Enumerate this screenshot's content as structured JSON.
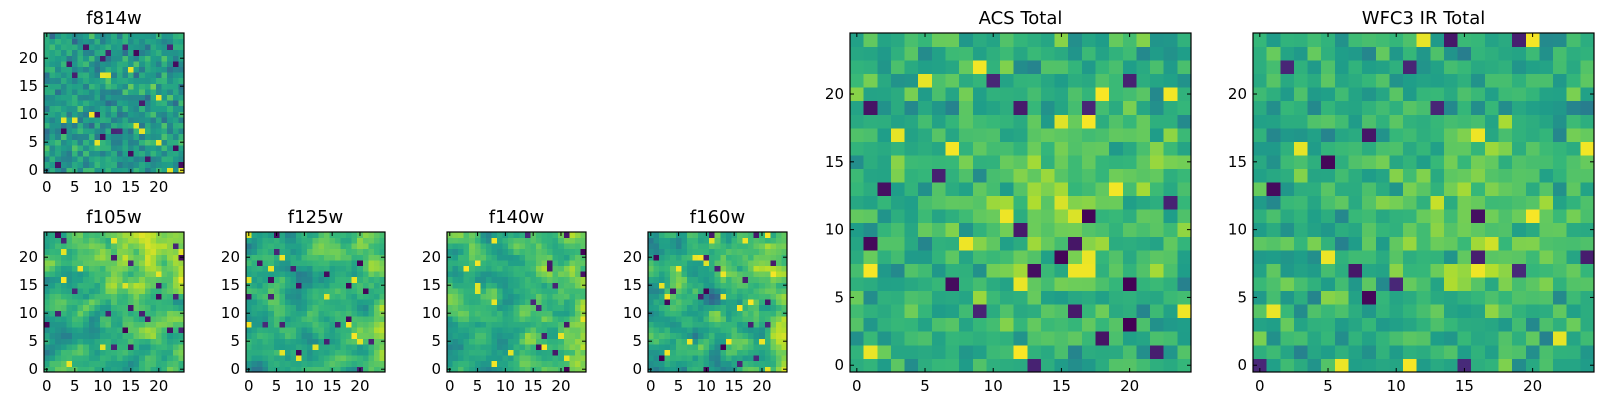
{
  "chart_data": [
    {
      "type": "heatmap",
      "title": "f814w",
      "rows": 25,
      "cols": 25,
      "xticks": [
        "0",
        "5",
        "10",
        "15",
        "20"
      ],
      "yticks": [
        "0",
        "5",
        "10",
        "15",
        "20"
      ],
      "xlim": [
        -0.5,
        24.5
      ],
      "ylim": [
        -0.5,
        24.5
      ],
      "seed": 814,
      "mean": 0.55,
      "spread": 0.16,
      "blur": 0,
      "bright_region": null,
      "colormap": "viridis",
      "grid": false
    },
    {
      "type": "heatmap",
      "title": "f105w",
      "rows": 25,
      "cols": 25,
      "xticks": [
        "0",
        "5",
        "10",
        "15",
        "20"
      ],
      "yticks": [
        "0",
        "5",
        "10",
        "15",
        "20"
      ],
      "xlim": [
        -0.5,
        24.5
      ],
      "ylim": [
        -0.5,
        24.5
      ],
      "seed": 105,
      "mean": 0.6,
      "spread": 0.2,
      "blur": 1,
      "bright_region": "upper-right",
      "colormap": "viridis",
      "grid": false
    },
    {
      "type": "heatmap",
      "title": "f125w",
      "rows": 25,
      "cols": 25,
      "xticks": [
        "0",
        "5",
        "10",
        "15",
        "20"
      ],
      "yticks": [
        "0",
        "5",
        "10",
        "15",
        "20"
      ],
      "xlim": [
        -0.5,
        24.5
      ],
      "ylim": [
        -0.5,
        24.5
      ],
      "seed": 125,
      "mean": 0.6,
      "spread": 0.2,
      "blur": 1,
      "bright_region": "right",
      "colormap": "viridis",
      "grid": false
    },
    {
      "type": "heatmap",
      "title": "f140w",
      "rows": 25,
      "cols": 25,
      "xticks": [
        "0",
        "5",
        "10",
        "15",
        "20"
      ],
      "yticks": [
        "0",
        "5",
        "10",
        "15",
        "20"
      ],
      "xlim": [
        -0.5,
        24.5
      ],
      "ylim": [
        -0.5,
        24.5
      ],
      "seed": 140,
      "mean": 0.62,
      "spread": 0.2,
      "blur": 1,
      "bright_region": "right",
      "colormap": "viridis",
      "grid": false
    },
    {
      "type": "heatmap",
      "title": "f160w",
      "rows": 25,
      "cols": 25,
      "xticks": [
        "0",
        "5",
        "10",
        "15",
        "20"
      ],
      "yticks": [
        "0",
        "5",
        "10",
        "15",
        "20"
      ],
      "xlim": [
        -0.5,
        24.5
      ],
      "ylim": [
        -0.5,
        24.5
      ],
      "seed": 160,
      "mean": 0.6,
      "spread": 0.22,
      "blur": 1,
      "bright_region": "right",
      "colormap": "viridis",
      "grid": false
    },
    {
      "type": "heatmap",
      "title": "ACS Total",
      "rows": 25,
      "cols": 25,
      "xticks": [
        "0",
        "5",
        "10",
        "15",
        "20"
      ],
      "yticks": [
        "0",
        "5",
        "10",
        "15",
        "20"
      ],
      "xlim": [
        -0.5,
        24.5
      ],
      "ylim": [
        -0.5,
        24.5
      ],
      "seed": 3001,
      "mean": 0.62,
      "spread": 0.15,
      "blur": 0,
      "bright_region": "center-right",
      "colormap": "viridis",
      "grid": false
    },
    {
      "type": "heatmap",
      "title": "WFC3 IR Total",
      "rows": 25,
      "cols": 25,
      "xticks": [
        "0",
        "5",
        "10",
        "15",
        "20"
      ],
      "yticks": [
        "0",
        "5",
        "10",
        "15",
        "20"
      ],
      "xlim": [
        -0.5,
        24.5
      ],
      "ylim": [
        -0.5,
        24.5
      ],
      "seed": 3002,
      "mean": 0.62,
      "spread": 0.15,
      "blur": 0,
      "bright_region": "center-right",
      "colormap": "viridis",
      "grid": false
    }
  ]
}
